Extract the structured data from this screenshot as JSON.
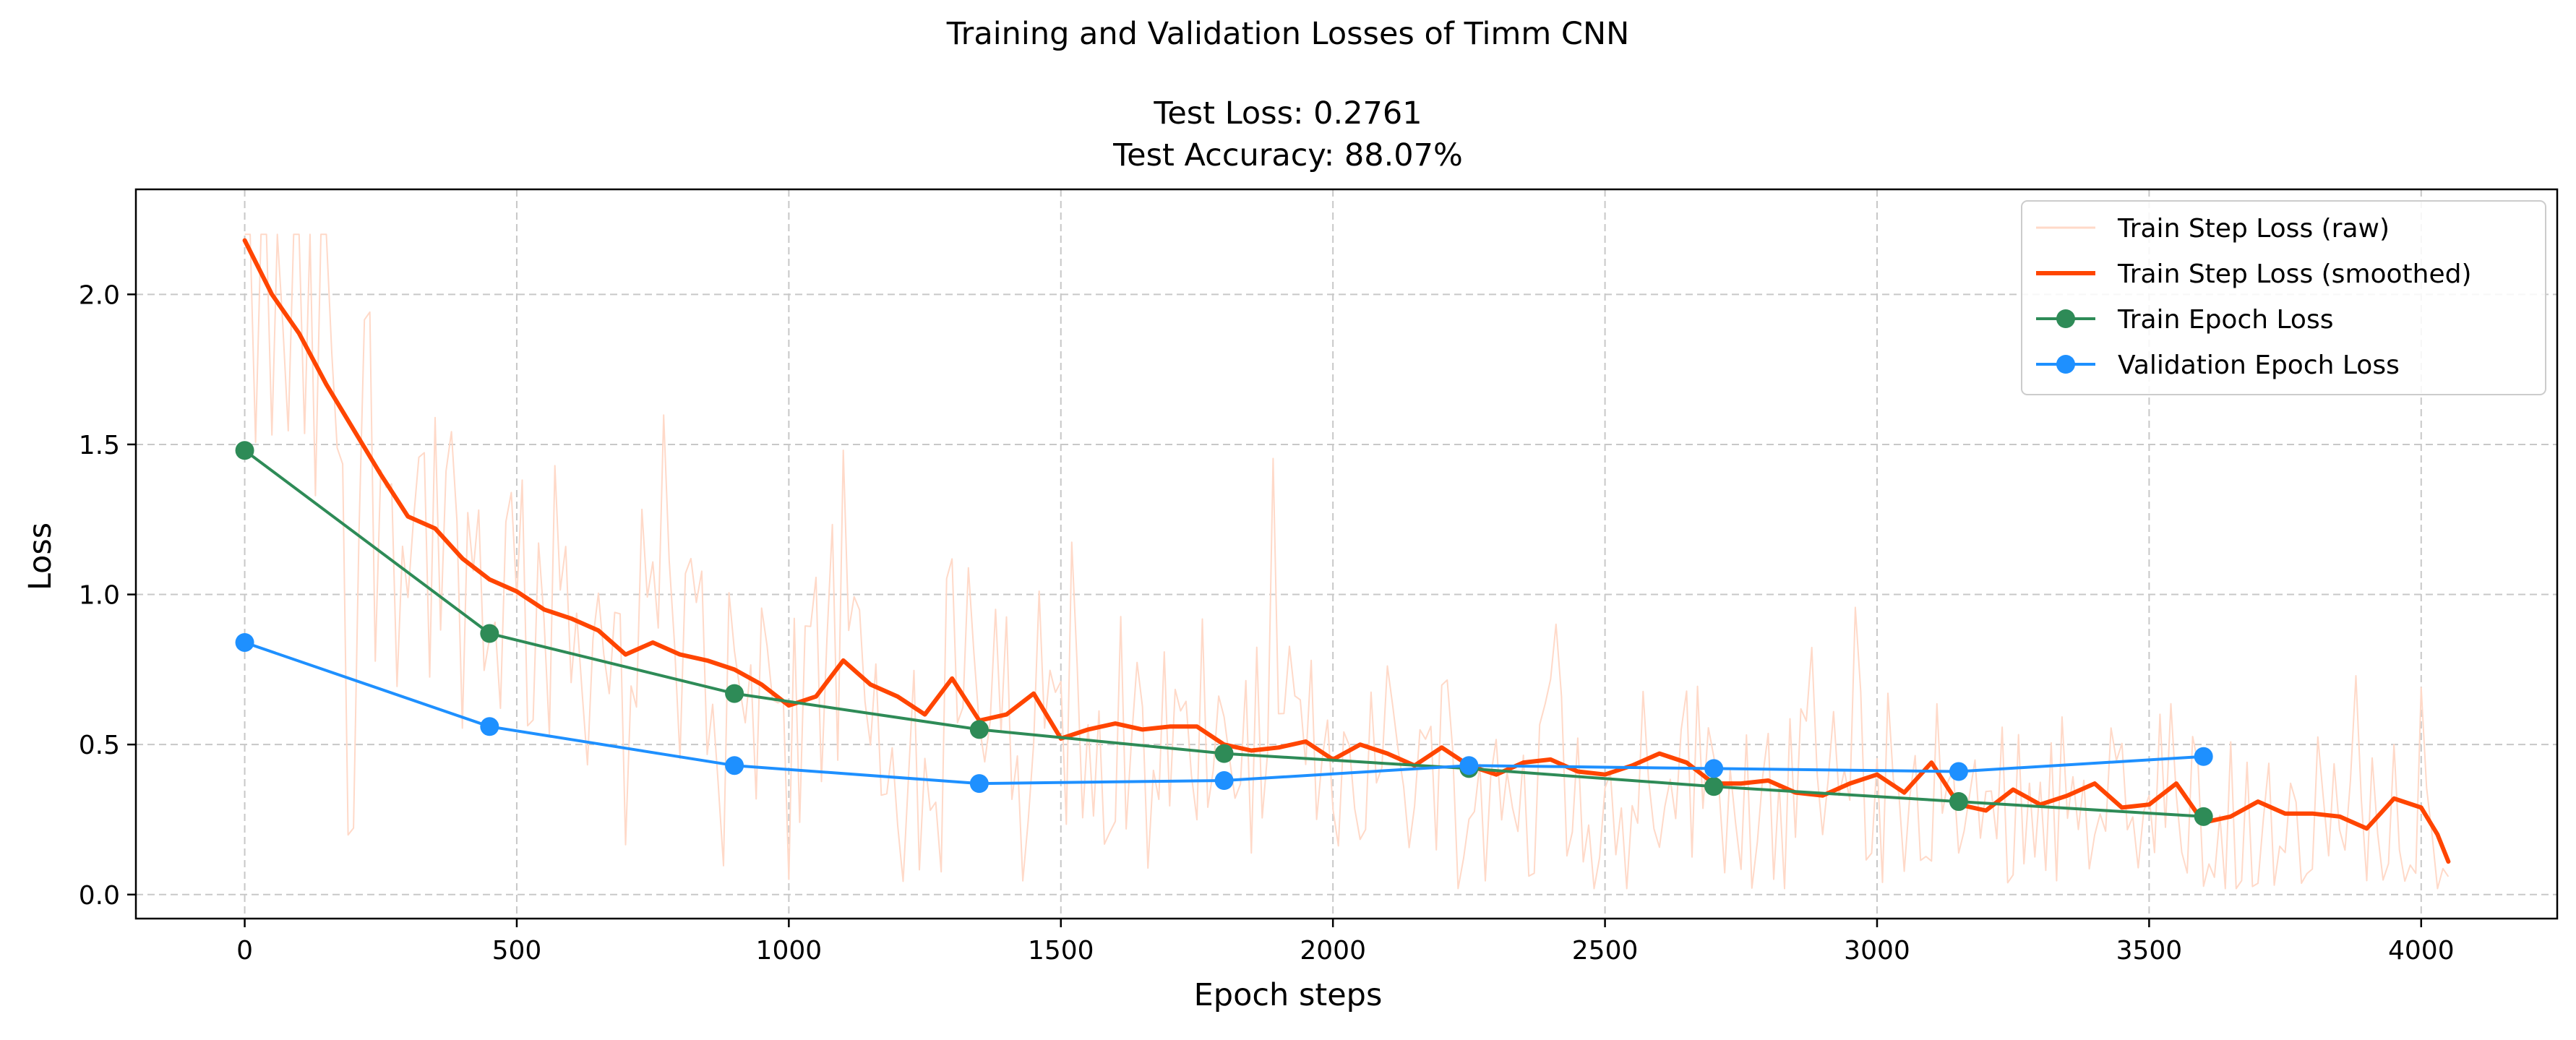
{
  "chart_data": {
    "type": "line",
    "title": "Training and Validation Losses of Timm CNN",
    "subtitle_lines": [
      "Test Loss: 0.2761",
      "Test Accuracy: 88.07%"
    ],
    "xlabel": "Epoch steps",
    "ylabel": "Loss",
    "xlim": [
      -200,
      4250
    ],
    "ylim": [
      -0.08,
      2.35
    ],
    "xticks": [
      0,
      500,
      1000,
      1500,
      2000,
      2500,
      3000,
      3500,
      4000
    ],
    "yticks": [
      0.0,
      0.5,
      1.0,
      1.5,
      2.0
    ],
    "xtick_labels": [
      "0",
      "500",
      "1000",
      "1500",
      "2000",
      "2500",
      "3000",
      "3500",
      "4000"
    ],
    "ytick_labels": [
      "0.0",
      "0.5",
      "1.0",
      "1.5",
      "2.0"
    ],
    "grid": true,
    "legend_position": "top-right",
    "colors": {
      "raw": "#ffd9c8",
      "smoothed": "#ff4500",
      "train_epoch": "#2e8b57",
      "validation_epoch": "#1e90ff"
    },
    "series": [
      {
        "name": "Train Step Loss (raw)",
        "style": "thin-line",
        "x_start": 0,
        "x_end": 4050,
        "x_step": 10,
        "description_values": "noisy per-step loss spanning roughly 0.03 to 2.2"
      },
      {
        "name": "Train Step Loss (smoothed)",
        "style": "thick-line",
        "x": [
          0,
          50,
          100,
          150,
          200,
          250,
          300,
          350,
          400,
          450,
          500,
          550,
          600,
          650,
          700,
          750,
          800,
          850,
          900,
          950,
          1000,
          1050,
          1100,
          1150,
          1200,
          1250,
          1300,
          1350,
          1400,
          1450,
          1500,
          1550,
          1600,
          1650,
          1700,
          1750,
          1800,
          1850,
          1900,
          1950,
          2000,
          2050,
          2100,
          2150,
          2200,
          2250,
          2300,
          2350,
          2400,
          2450,
          2500,
          2550,
          2600,
          2650,
          2700,
          2750,
          2800,
          2850,
          2900,
          2950,
          3000,
          3050,
          3100,
          3150,
          3200,
          3250,
          3300,
          3350,
          3400,
          3450,
          3500,
          3550,
          3600,
          3650,
          3700,
          3750,
          3800,
          3850,
          3900,
          3950,
          4000,
          4030,
          4050
        ],
        "y": [
          2.18,
          2.0,
          1.87,
          1.7,
          1.55,
          1.4,
          1.26,
          1.22,
          1.12,
          1.05,
          1.01,
          0.95,
          0.92,
          0.88,
          0.8,
          0.84,
          0.8,
          0.78,
          0.75,
          0.7,
          0.63,
          0.66,
          0.78,
          0.7,
          0.66,
          0.6,
          0.72,
          0.58,
          0.6,
          0.67,
          0.52,
          0.55,
          0.57,
          0.55,
          0.56,
          0.56,
          0.5,
          0.48,
          0.49,
          0.51,
          0.45,
          0.5,
          0.47,
          0.43,
          0.49,
          0.43,
          0.4,
          0.44,
          0.45,
          0.41,
          0.4,
          0.43,
          0.47,
          0.44,
          0.37,
          0.37,
          0.38,
          0.34,
          0.33,
          0.37,
          0.4,
          0.34,
          0.44,
          0.3,
          0.28,
          0.35,
          0.3,
          0.33,
          0.37,
          0.29,
          0.3,
          0.37,
          0.24,
          0.26,
          0.31,
          0.27,
          0.27,
          0.26,
          0.22,
          0.32,
          0.29,
          0.2,
          0.11
        ]
      },
      {
        "name": "Train Epoch Loss",
        "style": "line-with-markers",
        "x": [
          0,
          450,
          900,
          1350,
          1800,
          2250,
          2700,
          3150,
          3600
        ],
        "y": [
          1.48,
          0.87,
          0.67,
          0.55,
          0.47,
          0.42,
          0.36,
          0.31,
          0.26
        ]
      },
      {
        "name": "Validation Epoch Loss",
        "style": "line-with-markers",
        "x": [
          0,
          450,
          900,
          1350,
          1800,
          2250,
          2700,
          3150,
          3600
        ],
        "y": [
          0.84,
          0.56,
          0.43,
          0.37,
          0.38,
          0.43,
          0.42,
          0.41,
          0.46
        ]
      }
    ]
  }
}
